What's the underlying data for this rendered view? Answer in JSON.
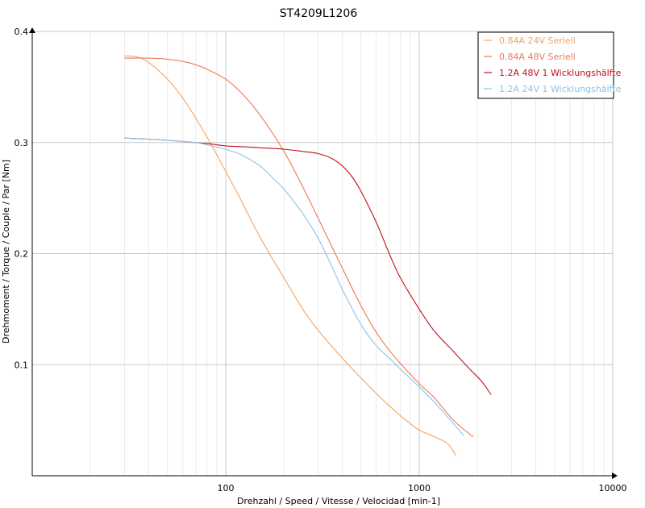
{
  "chart_data": {
    "type": "line",
    "title": "ST4209L1206",
    "xlabel": "Drehzahl / Speed / Vitesse / Velocidad [min-1]",
    "ylabel": "Drehmoment / Torque / Couple / Par [Nm]",
    "x_scale": "log",
    "xlim": [
      10,
      10000
    ],
    "ylim": [
      0,
      0.4
    ],
    "x_ticks": [
      100,
      1000,
      10000
    ],
    "x_tick_labels": [
      "100",
      "1000",
      "10000"
    ],
    "y_ticks": [
      0.1,
      0.2,
      0.3,
      0.4
    ],
    "y_tick_labels": [
      "0.1",
      "0.2",
      "0.3",
      "0.4"
    ],
    "grid": true,
    "legend_position": "top-right",
    "series": [
      {
        "name": "0.84A  24V  Seriell",
        "color": "#f4a460",
        "x": [
          30,
          35,
          40,
          50,
          60,
          70,
          80,
          100,
          120,
          150,
          200,
          250,
          300,
          400,
          500,
          600,
          700,
          800,
          900,
          1000,
          1200,
          1400,
          1550
        ],
        "y": [
          0.378,
          0.377,
          0.372,
          0.357,
          0.34,
          0.322,
          0.305,
          0.274,
          0.248,
          0.215,
          0.178,
          0.15,
          0.131,
          0.106,
          0.088,
          0.074,
          0.063,
          0.054,
          0.047,
          0.041,
          0.035,
          0.029,
          0.018
        ]
      },
      {
        "name": "0.84A  48V  Seriell",
        "color": "#f07850",
        "x": [
          30,
          40,
          50,
          60,
          70,
          80,
          100,
          120,
          150,
          200,
          250,
          300,
          400,
          500,
          600,
          700,
          800,
          1000,
          1200,
          1500,
          1900
        ],
        "y": [
          0.376,
          0.376,
          0.375,
          0.373,
          0.37,
          0.366,
          0.357,
          0.345,
          0.325,
          0.292,
          0.26,
          0.232,
          0.187,
          0.153,
          0.129,
          0.113,
          0.101,
          0.083,
          0.07,
          0.05,
          0.035
        ]
      },
      {
        "name": "1.2A  48V  1 Wicklungshälfte",
        "color": "#c0101a",
        "x": [
          30,
          40,
          50,
          60,
          80,
          100,
          130,
          160,
          200,
          250,
          300,
          350,
          400,
          450,
          500,
          600,
          700,
          800,
          1000,
          1200,
          1500,
          1800,
          2100,
          2350
        ],
        "y": [
          0.304,
          0.303,
          0.302,
          0.301,
          0.299,
          0.297,
          0.296,
          0.295,
          0.294,
          0.292,
          0.29,
          0.286,
          0.279,
          0.269,
          0.256,
          0.228,
          0.2,
          0.178,
          0.15,
          0.13,
          0.112,
          0.097,
          0.085,
          0.073
        ]
      },
      {
        "name": "1.2A  24V  1 Wicklungshälfte",
        "color": "#88c4e8",
        "x": [
          30,
          40,
          50,
          60,
          70,
          80,
          90,
          100,
          120,
          150,
          180,
          200,
          250,
          300,
          350,
          400,
          500,
          600,
          700,
          800,
          1000,
          1200,
          1500,
          1700
        ],
        "y": [
          0.304,
          0.303,
          0.302,
          0.301,
          0.3,
          0.298,
          0.296,
          0.294,
          0.289,
          0.279,
          0.266,
          0.258,
          0.236,
          0.214,
          0.19,
          0.168,
          0.136,
          0.117,
          0.106,
          0.096,
          0.08,
          0.066,
          0.047,
          0.036
        ]
      }
    ]
  }
}
